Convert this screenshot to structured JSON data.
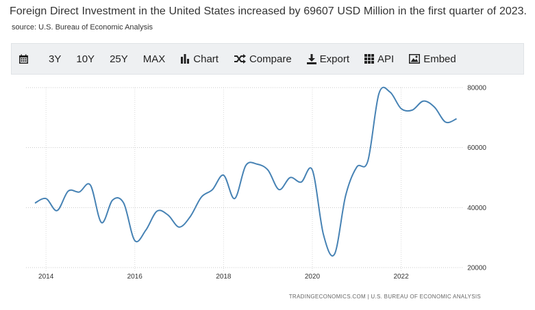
{
  "headline": {
    "title": "Foreign Direct Investment in the United States increased by 69607 USD Million in the first quarter of 2023.",
    "source": "source: U.S. Bureau of Economic Analysis"
  },
  "toolbar": {
    "calendar_icon": "calendar-icon",
    "range_3y": "3Y",
    "range_10y": "10Y",
    "range_25y": "25Y",
    "range_max": "MAX",
    "chart_label": "Chart",
    "compare_label": "Compare",
    "export_label": "Export",
    "api_label": "API",
    "embed_label": "Embed"
  },
  "credit": "TRADINGECONOMICS.COM  |  U.S. BUREAU OF ECONOMIC ANALYSIS",
  "chart_data": {
    "type": "line",
    "title": "",
    "xlabel": "",
    "ylabel": "",
    "xlim": [
      2013.55,
      2023.38
    ],
    "ylim": [
      20000,
      80000
    ],
    "y_ticks": [
      20000,
      40000,
      60000,
      80000
    ],
    "x_ticks": [
      2014,
      2016,
      2018,
      2020,
      2022
    ],
    "grid": "horizontal dotted",
    "line_color": "#4682b4",
    "series": [
      {
        "name": "",
        "x": [
          2013.75,
          2014.0,
          2014.25,
          2014.5,
          2014.75,
          2015.0,
          2015.25,
          2015.5,
          2015.75,
          2016.0,
          2016.25,
          2016.5,
          2016.75,
          2017.0,
          2017.25,
          2017.5,
          2017.75,
          2018.0,
          2018.25,
          2018.5,
          2018.75,
          2019.0,
          2019.25,
          2019.5,
          2019.75,
          2020.0,
          2020.25,
          2020.5,
          2020.75,
          2021.0,
          2021.25,
          2021.5,
          2021.75,
          2022.0,
          2022.25,
          2022.5,
          2022.75,
          2023.0,
          2023.25
        ],
        "values": [
          41500,
          43000,
          39000,
          45500,
          45200,
          47500,
          35000,
          42500,
          41500,
          29000,
          32500,
          38800,
          37500,
          33500,
          37000,
          43500,
          46000,
          50800,
          43000,
          54000,
          54500,
          52500,
          46000,
          50000,
          48500,
          52500,
          31000,
          24500,
          44000,
          53500,
          55500,
          78000,
          78500,
          73000,
          72500,
          75500,
          73500,
          68500,
          69607
        ]
      }
    ]
  }
}
